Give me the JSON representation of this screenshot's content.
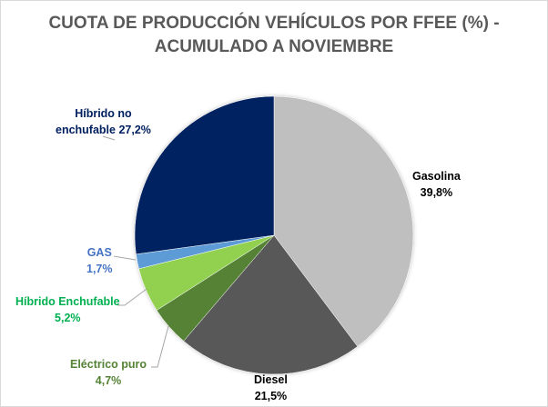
{
  "chart_data": {
    "type": "pie",
    "title_line1": "CUOTA DE PRODUCCIÓN VEHÍCULOS POR FFEE (%)  -",
    "title_line2": "ACUMULADO A NOVIEMBRE",
    "slices": [
      {
        "name": "Gasolina",
        "value": 39.8,
        "label": "39,8%",
        "color": "#bfbfbf",
        "label_color": "#000000"
      },
      {
        "name": "Diesel",
        "value": 21.5,
        "label": "21,5%",
        "color": "#595959",
        "label_color": "#000000"
      },
      {
        "name": "Eléctrico puro",
        "value": 4.7,
        "label": "4,7%",
        "color": "#548235",
        "label_color": "#548235"
      },
      {
        "name": "Híbrido Enchufable",
        "value": 5.2,
        "label": "5,2%",
        "color": "#92d050",
        "label_color": "#00b050"
      },
      {
        "name": "GAS",
        "value": 1.7,
        "label": "1,7%",
        "color": "#5b9bd5",
        "label_color": "#4472c4"
      },
      {
        "name": "Híbrido no enchufable",
        "value": 27.2,
        "label": "27,2%",
        "color": "#002060",
        "label_color": "#002060"
      }
    ],
    "legend": "none"
  },
  "labels": {
    "hne_line1": "Híbrido no",
    "hne_line2": "enchufable 27,2%"
  }
}
